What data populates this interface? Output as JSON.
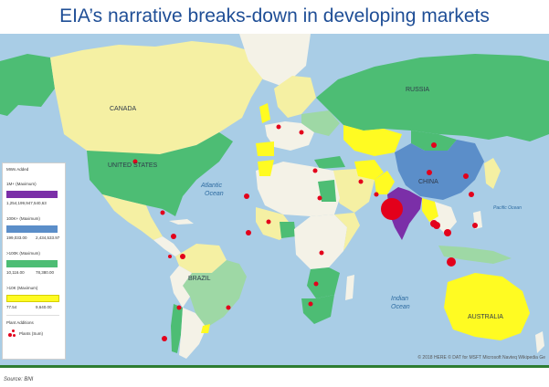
{
  "title": "EIA’s narrative breaks-down in developing markets",
  "source": "Source: BNI",
  "credit": "© 2018 HERE © DAT for MSFT  Microsoft  Navteq  Wikipedia  Ge",
  "colors": {
    "ocean": "#a9cde6",
    "land_default": "#f4f2e7",
    "purple": "#7b2fa8",
    "blue": "#5b8ec9",
    "green": "#4dbd74",
    "light_green": "#9ed8a5",
    "yellow": "#fffb22",
    "light_yellow": "#f5f0a3",
    "plant_dot": "#e3001b"
  },
  "legend": {
    "title": "MWs Added",
    "bands": [
      {
        "label": "1M+ (Maximum)",
        "min": "1,254,199,947,540,63",
        "max": "",
        "color": "#7b2fa8"
      },
      {
        "label": "100K+ (Maximum)",
        "min": "199,033.00",
        "max": "2,434,533.97",
        "color": "#5b8ec9"
      },
      {
        "label": ">100K (Maximum)",
        "min": "10,116.00",
        "max": "78,380.00",
        "color": "#4dbd74"
      },
      {
        "label": ">10K (Maximum)",
        "min": "77.54",
        "max": "9,640.00",
        "color": "#fffb22"
      }
    ],
    "plants_title": "Plant Additions",
    "plants_label": "Plants (Sum)"
  },
  "labels": {
    "canada": "CANADA",
    "united_states": "UNITED STATES",
    "russia": "RUSSIA",
    "china": "CHINA",
    "brazil": "BRAZIL",
    "australia": "AUSTRALIA",
    "atlantic": "Atlantic",
    "atlantic2": "Ocean",
    "indian": "Indian",
    "indian2": "Ocean",
    "pacific": "Pacific Ocean"
  }
}
